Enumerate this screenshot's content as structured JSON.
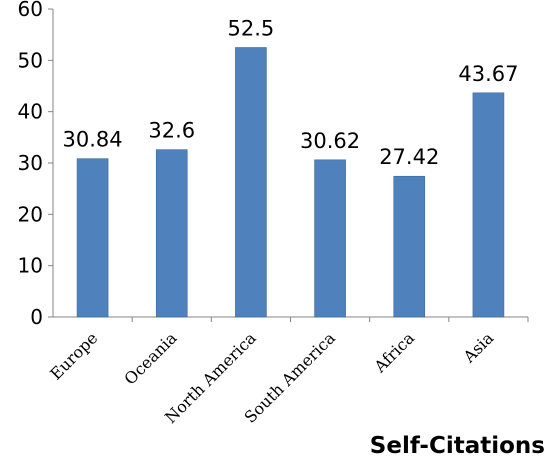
{
  "chart_data": {
    "type": "bar",
    "title": "Self-Citations",
    "xlabel": "",
    "ylabel": "",
    "categories": [
      "Europe",
      "Oceania",
      "North America",
      "South America",
      "Africa",
      "Asia"
    ],
    "values": [
      30.84,
      32.6,
      52.5,
      30.62,
      27.42,
      43.67
    ],
    "data_labels": [
      "30.84",
      "32.6",
      "52.5",
      "30.62",
      "27.42",
      "43.67"
    ],
    "ylim": [
      0,
      60
    ],
    "yticks": [
      "0",
      "10",
      "20",
      "30",
      "40",
      "50",
      "60"
    ],
    "grid": false,
    "legend": "none",
    "bar_color": "#4f81bd",
    "bar_edge_color": "#3a6a9e",
    "axis_color": "#868686"
  }
}
